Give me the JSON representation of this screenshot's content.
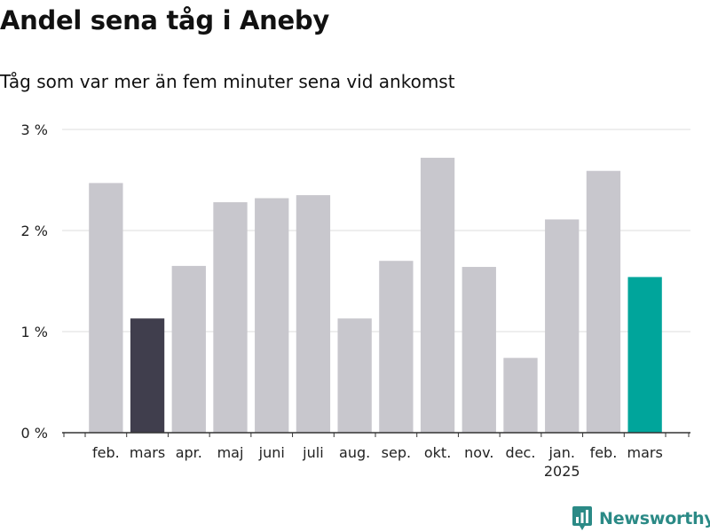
{
  "title": "Andel sena tåg i Aneby",
  "subtitle": "Tåg som var mer än fem minuter sena vid ankomst",
  "brand": {
    "name": "Newsworthy",
    "icon": "bar-chart-pin-icon",
    "color": "#2b8a86"
  },
  "colors": {
    "default_bar": "#c8c7cd",
    "previous_year_bar": "#403e4d",
    "latest_bar": "#00a59b",
    "grid": "#dddddd",
    "axis": "#333333"
  },
  "chart_data": {
    "type": "bar",
    "categories": [
      "feb.",
      "mars",
      "apr.",
      "maj",
      "juni",
      "juli",
      "aug.",
      "sep.",
      "okt.",
      "nov.",
      "dec.",
      "jan.",
      "feb.",
      "mars"
    ],
    "year_labels": [
      "",
      "",
      "",
      "",
      "",
      "",
      "",
      "",
      "",
      "",
      "",
      "2025",
      "",
      ""
    ],
    "values": [
      2.47,
      1.13,
      1.65,
      2.28,
      2.32,
      2.35,
      1.13,
      1.7,
      2.72,
      1.64,
      0.74,
      2.11,
      2.59,
      1.54
    ],
    "highlight": [
      "default",
      "previous_year",
      "default",
      "default",
      "default",
      "default",
      "default",
      "default",
      "default",
      "default",
      "default",
      "default",
      "default",
      "latest"
    ],
    "ylim": [
      0,
      3
    ],
    "yticks": [
      0,
      1,
      2,
      3
    ],
    "ytick_labels": [
      "0 %",
      "1 %",
      "2 %",
      "3 %"
    ],
    "xlabel": "",
    "ylabel": "",
    "grid": true
  }
}
